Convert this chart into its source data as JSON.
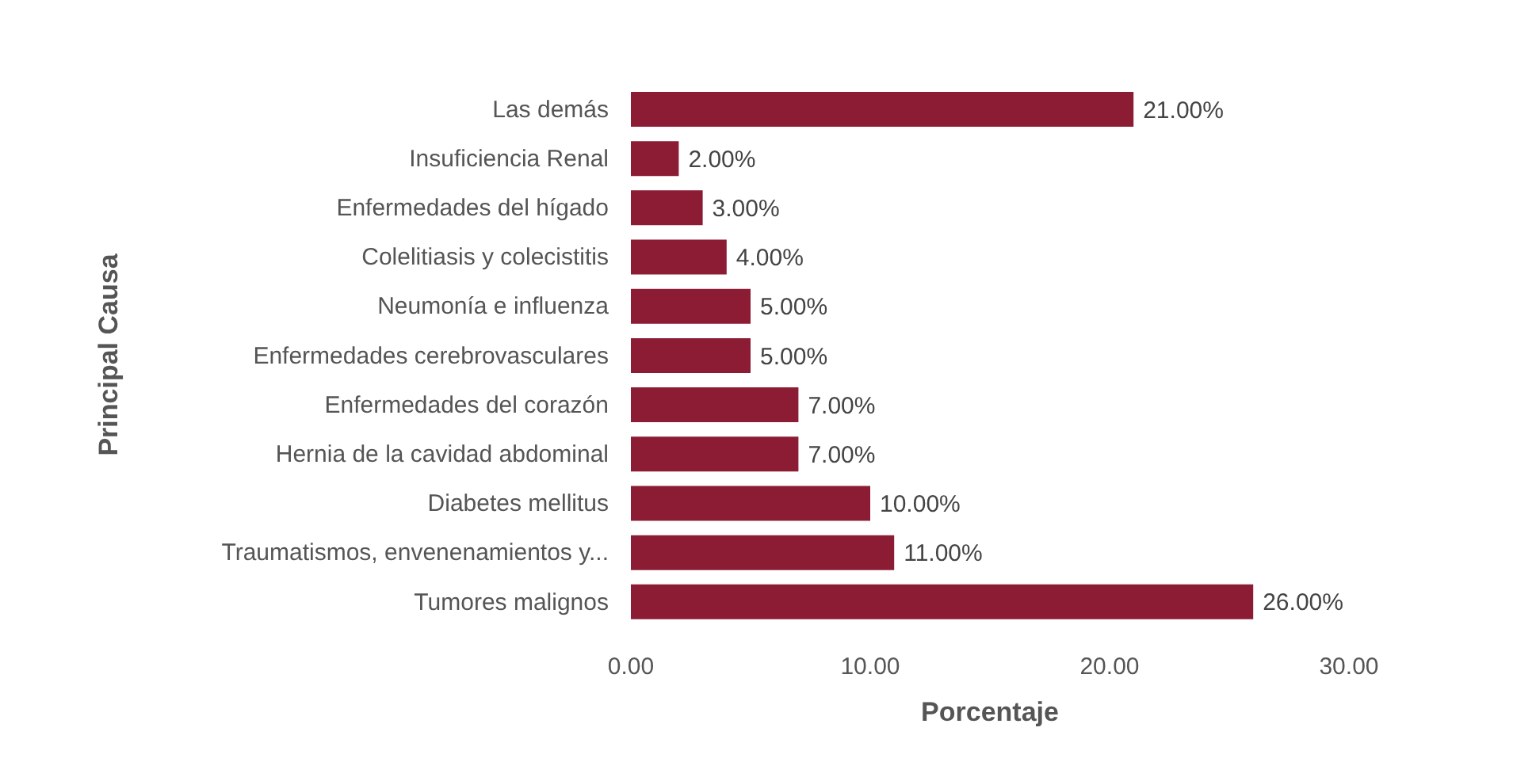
{
  "chart_data": {
    "type": "bar",
    "orientation": "horizontal",
    "xlabel": "Porcentaje",
    "ylabel": "Principal Causa",
    "categories": [
      "Las demás",
      "Insuficiencia Renal",
      "Enfermedades del hígado",
      "Colelitiasis y colecistitis",
      "Neumonía e influenza",
      "Enfermedades cerebrovasculares",
      "Enfermedades del corazón",
      "Hernia de la cavidad abdominal",
      "Diabetes mellitus",
      "Traumatismos, envenenamientos y...",
      "Tumores malignos"
    ],
    "values": [
      21,
      2,
      3,
      4,
      5,
      5,
      7,
      7,
      10,
      11,
      26
    ],
    "value_labels": [
      "21.00%",
      "2.00%",
      "3.00%",
      "4.00%",
      "5.00%",
      "5.00%",
      "7.00%",
      "7.00%",
      "10.00%",
      "11.00%",
      "26.00%"
    ],
    "color": "#8c1c34",
    "xlim": [
      0,
      30
    ],
    "xticks": [
      {
        "value": 0,
        "label": "0.00"
      },
      {
        "value": 10,
        "label": "10.00"
      },
      {
        "value": 20,
        "label": "20.00"
      },
      {
        "value": 30,
        "label": "30.00"
      }
    ],
    "grid": false
  }
}
